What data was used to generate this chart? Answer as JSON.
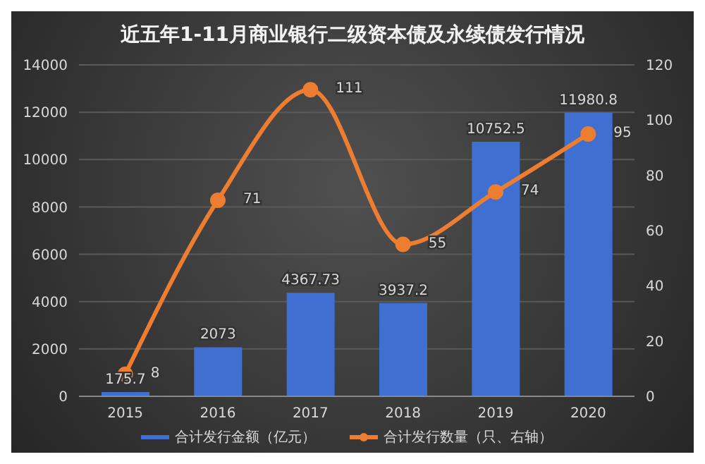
{
  "chart_data": {
    "type": "bar",
    "title": "近五年1-11月商业银行二级资本债及永续债发行情况",
    "categories": [
      "2015",
      "2016",
      "2017",
      "2018",
      "2019",
      "2020"
    ],
    "series": [
      {
        "name": "合计发行金额（亿元）",
        "color": "#3f6fd0",
        "values": [
          175.7,
          2073,
          4367.73,
          3937.2,
          10752.5,
          11980.8
        ]
      },
      {
        "name": "合计发行数量（只、右轴）",
        "type": "line",
        "axis": "y2",
        "color": "#ed7d31",
        "values": [
          8,
          71,
          111,
          55,
          74,
          95
        ]
      }
    ],
    "ylim": [
      0,
      14000
    ],
    "yticks": [
      0,
      2000,
      4000,
      6000,
      8000,
      10000,
      12000,
      14000
    ],
    "y2lim": [
      0,
      120
    ],
    "y2ticks": [
      0,
      20,
      40,
      60,
      80,
      100,
      120
    ],
    "data_labels": true,
    "grid": "y",
    "legend": "bottom",
    "marker": "circle"
  }
}
